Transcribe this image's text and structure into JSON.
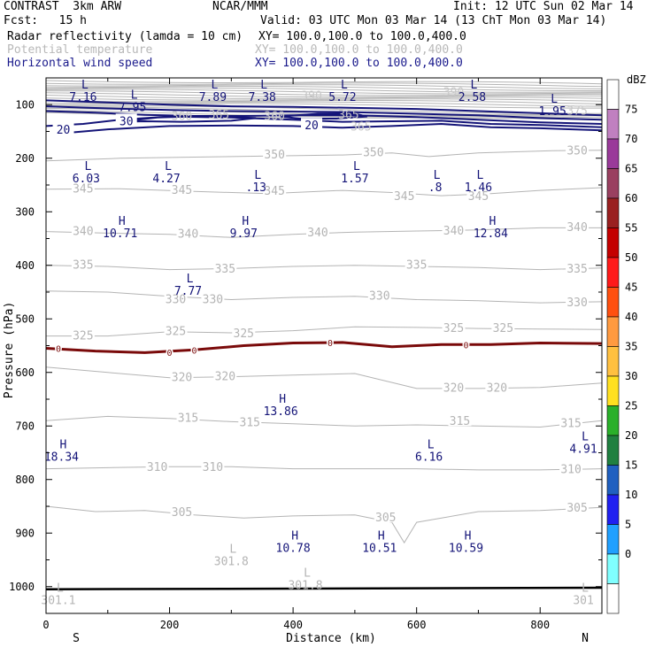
{
  "header": {
    "title": "CONTRAST  3km ARW",
    "center": "NCAR/MMM",
    "init": "Init: 12 UTC Sun 02 Mar 14",
    "fcst": "Fcst:   15 h",
    "valid": "Valid: 03 UTC Mon 03 Mar 14 (13 ChT Mon 03 Mar 14)",
    "field1_name": "Radar reflectivity (lamda = 10 cm)",
    "field1_xy": "XY= 100.0,100.0 to 100.0,400.0",
    "field2_name": "Potential temperature",
    "field2_xy": "XY= 100.0,100.0 to 100.0,400.0",
    "field3_name": "Horizontal wind speed",
    "field3_xy": "XY= 100.0,100.0 to 100.0,400.0"
  },
  "chart_data": {
    "type": "line",
    "title": "Cross section",
    "xlabel": "Distance (km)",
    "ylabel": "Pressure (hPa)",
    "xlim": [
      0,
      900
    ],
    "ylim": [
      1050,
      50
    ],
    "x_ticks": [
      0,
      200,
      400,
      600,
      800
    ],
    "y_ticks": [
      100,
      200,
      300,
      400,
      500,
      600,
      700,
      800,
      900,
      1000
    ],
    "end_labels": {
      "left": "S",
      "right": "N"
    },
    "colorbar": {
      "unit": "dBZ",
      "ticks": [
        75,
        70,
        65,
        60,
        55,
        50,
        45,
        40,
        35,
        30,
        25,
        20,
        15,
        10,
        5,
        0
      ],
      "colors": [
        "#ffffff",
        "#c080c0",
        "#9a3a9a",
        "#9a4060",
        "#9a2020",
        "#c40000",
        "#ff1a1a",
        "#ff5010",
        "#ff9a40",
        "#ffc040",
        "#ffe020",
        "#2ab02a",
        "#208040",
        "#2060c0",
        "#2020f0",
        "#20a0ff",
        "#80ffff",
        "#ffffff"
      ]
    },
    "theta_isentropes": [
      {
        "value": 350,
        "points": [
          [
            0,
            205
          ],
          [
            120,
            200
          ],
          [
            240,
            198
          ],
          [
            360,
            196
          ],
          [
            480,
            194
          ],
          [
            560,
            190
          ],
          [
            620,
            197
          ],
          [
            700,
            190
          ],
          [
            760,
            188
          ],
          [
            820,
            186
          ],
          [
            900,
            185
          ]
        ]
      },
      {
        "value": 345,
        "points": [
          [
            0,
            258
          ],
          [
            120,
            257
          ],
          [
            240,
            262
          ],
          [
            360,
            266
          ],
          [
            480,
            260
          ],
          [
            560,
            264
          ],
          [
            640,
            270
          ],
          [
            720,
            266
          ],
          [
            800,
            260
          ],
          [
            900,
            255
          ]
        ]
      },
      {
        "value": 340,
        "points": [
          [
            0,
            337
          ],
          [
            100,
            340
          ],
          [
            200,
            342
          ],
          [
            300,
            348
          ],
          [
            400,
            342
          ],
          [
            500,
            338
          ],
          [
            600,
            336
          ],
          [
            700,
            334
          ],
          [
            800,
            330
          ],
          [
            900,
            330
          ]
        ]
      },
      {
        "value": 335,
        "points": [
          [
            0,
            400
          ],
          [
            100,
            402
          ],
          [
            200,
            408
          ],
          [
            300,
            406
          ],
          [
            400,
            402
          ],
          [
            500,
            400
          ],
          [
            600,
            402
          ],
          [
            700,
            404
          ],
          [
            800,
            408
          ],
          [
            900,
            405
          ]
        ]
      },
      {
        "value": 330,
        "points": [
          [
            0,
            448
          ],
          [
            100,
            450
          ],
          [
            200,
            458
          ],
          [
            300,
            464
          ],
          [
            400,
            460
          ],
          [
            500,
            458
          ],
          [
            600,
            464
          ],
          [
            700,
            466
          ],
          [
            800,
            470
          ],
          [
            900,
            468
          ]
        ]
      },
      {
        "value": 325,
        "points": [
          [
            0,
            532
          ],
          [
            100,
            532
          ],
          [
            200,
            524
          ],
          [
            300,
            526
          ],
          [
            400,
            522
          ],
          [
            500,
            515
          ],
          [
            600,
            516
          ],
          [
            700,
            518
          ],
          [
            800,
            519
          ],
          [
            900,
            520
          ]
        ]
      },
      {
        "value": 320,
        "points": [
          [
            0,
            590
          ],
          [
            100,
            600
          ],
          [
            200,
            610
          ],
          [
            300,
            608
          ],
          [
            400,
            605
          ],
          [
            500,
            602
          ],
          [
            600,
            630
          ],
          [
            700,
            630
          ],
          [
            800,
            628
          ],
          [
            900,
            620
          ]
        ]
      },
      {
        "value": 315,
        "points": [
          [
            0,
            690
          ],
          [
            100,
            682
          ],
          [
            200,
            686
          ],
          [
            300,
            692
          ],
          [
            400,
            696
          ],
          [
            500,
            700
          ],
          [
            600,
            698
          ],
          [
            700,
            700
          ],
          [
            800,
            702
          ],
          [
            900,
            690
          ]
        ]
      },
      {
        "value": 310,
        "points": [
          [
            0,
            780
          ],
          [
            100,
            778
          ],
          [
            200,
            776
          ],
          [
            300,
            776
          ],
          [
            400,
            780
          ],
          [
            500,
            780
          ],
          [
            600,
            780
          ],
          [
            700,
            782
          ],
          [
            800,
            782
          ],
          [
            900,
            780
          ]
        ]
      },
      {
        "value": 305,
        "points": [
          [
            0,
            850
          ],
          [
            80,
            860
          ],
          [
            160,
            858
          ],
          [
            240,
            866
          ],
          [
            320,
            872
          ],
          [
            400,
            868
          ],
          [
            500,
            866
          ],
          [
            560,
            880
          ],
          [
            580,
            918
          ],
          [
            600,
            880
          ],
          [
            700,
            860
          ],
          [
            800,
            858
          ],
          [
            900,
            852
          ]
        ]
      }
    ],
    "theta_labels": [
      {
        "text": "350",
        "x": 370,
        "y": 192
      },
      {
        "text": "350",
        "x": 530,
        "y": 188
      },
      {
        "text": "350",
        "x": 860,
        "y": 185
      },
      {
        "text": "345",
        "x": 60,
        "y": 256
      },
      {
        "text": "345",
        "x": 220,
        "y": 258
      },
      {
        "text": "345",
        "x": 370,
        "y": 260
      },
      {
        "text": "345",
        "x": 580,
        "y": 270
      },
      {
        "text": "345",
        "x": 700,
        "y": 270
      },
      {
        "text": "340",
        "x": 60,
        "y": 335
      },
      {
        "text": "340",
        "x": 230,
        "y": 340
      },
      {
        "text": "340",
        "x": 440,
        "y": 338
      },
      {
        "text": "340",
        "x": 660,
        "y": 334
      },
      {
        "text": "340",
        "x": 860,
        "y": 328
      },
      {
        "text": "335",
        "x": 60,
        "y": 398
      },
      {
        "text": "335",
        "x": 290,
        "y": 405
      },
      {
        "text": "335",
        "x": 600,
        "y": 398
      },
      {
        "text": "335",
        "x": 860,
        "y": 405
      },
      {
        "text": "330",
        "x": 210,
        "y": 462
      },
      {
        "text": "330",
        "x": 270,
        "y": 462
      },
      {
        "text": "330",
        "x": 540,
        "y": 456
      },
      {
        "text": "330",
        "x": 860,
        "y": 468
      },
      {
        "text": "325",
        "x": 60,
        "y": 530
      },
      {
        "text": "325",
        "x": 210,
        "y": 522
      },
      {
        "text": "325",
        "x": 320,
        "y": 526
      },
      {
        "text": "325",
        "x": 660,
        "y": 516
      },
      {
        "text": "325",
        "x": 740,
        "y": 516
      },
      {
        "text": "320",
        "x": 220,
        "y": 608
      },
      {
        "text": "320",
        "x": 290,
        "y": 606
      },
      {
        "text": "320",
        "x": 660,
        "y": 628
      },
      {
        "text": "320",
        "x": 730,
        "y": 628
      },
      {
        "text": "315",
        "x": 230,
        "y": 684
      },
      {
        "text": "315",
        "x": 330,
        "y": 692
      },
      {
        "text": "315",
        "x": 670,
        "y": 690
      },
      {
        "text": "315",
        "x": 850,
        "y": 694
      },
      {
        "text": "310",
        "x": 180,
        "y": 776
      },
      {
        "text": "310",
        "x": 270,
        "y": 776
      },
      {
        "text": "310",
        "x": 850,
        "y": 780
      },
      {
        "text": "305",
        "x": 220,
        "y": 860
      },
      {
        "text": "305",
        "x": 550,
        "y": 870
      },
      {
        "text": "305",
        "x": 860,
        "y": 852
      }
    ],
    "upper_theta_labels": [
      {
        "text": "390",
        "x": 430,
        "y": 82
      },
      {
        "text": "390",
        "x": 660,
        "y": 76
      },
      {
        "text": "360",
        "x": 220,
        "y": 120
      },
      {
        "text": "365",
        "x": 280,
        "y": 118
      },
      {
        "text": "360",
        "x": 370,
        "y": 120
      },
      {
        "text": "365",
        "x": 490,
        "y": 118
      },
      {
        "text": "365",
        "x": 510,
        "y": 140
      },
      {
        "text": "375",
        "x": 860,
        "y": 110
      }
    ],
    "wind_contours": [
      {
        "value": 20,
        "label_positions": [
          [
            28,
            146
          ],
          [
            430,
            138
          ]
        ]
      },
      {
        "value": 30,
        "label_positions": [
          [
            130,
            130
          ]
        ]
      }
    ],
    "freezing_line": {
      "value": 0,
      "points": [
        [
          0,
          555
        ],
        [
          80,
          560
        ],
        [
          160,
          563
        ],
        [
          240,
          558
        ],
        [
          320,
          550
        ],
        [
          400,
          545
        ],
        [
          480,
          544
        ],
        [
          560,
          552
        ],
        [
          640,
          548
        ],
        [
          720,
          548
        ],
        [
          800,
          545
        ],
        [
          900,
          546
        ]
      ],
      "label_positions": [
        [
          20,
          555
        ],
        [
          200,
          562
        ],
        [
          240,
          558
        ],
        [
          460,
          544
        ],
        [
          680,
          548
        ]
      ]
    },
    "extrema": [
      {
        "type": "L",
        "value": "7.16",
        "x": 60,
        "y": 63
      },
      {
        "type": "L",
        "value": "7.95",
        "x": 140,
        "y": 82
      },
      {
        "type": "L",
        "value": "7.89",
        "x": 270,
        "y": 63
      },
      {
        "type": "L",
        "value": "7.38",
        "x": 350,
        "y": 63
      },
      {
        "type": "L",
        "value": "5.72",
        "x": 480,
        "y": 63
      },
      {
        "type": "L",
        "value": "2.58",
        "x": 690,
        "y": 63
      },
      {
        "type": "L",
        "value": "1.95",
        "x": 820,
        "y": 90
      },
      {
        "type": "L",
        "value": "6.03",
        "x": 65,
        "y": 215
      },
      {
        "type": "L",
        "value": "4.27",
        "x": 195,
        "y": 215
      },
      {
        "type": "L",
        "value": ".13",
        "x": 340,
        "y": 232
      },
      {
        "type": "L",
        "value": "1.57",
        "x": 500,
        "y": 215
      },
      {
        "type": "L",
        "value": ".8",
        "x": 630,
        "y": 232
      },
      {
        "type": "L",
        "value": "1.46",
        "x": 700,
        "y": 232
      },
      {
        "type": "H",
        "value": "10.71",
        "x": 120,
        "y": 318
      },
      {
        "type": "H",
        "value": "9.97",
        "x": 320,
        "y": 318
      },
      {
        "type": "H",
        "value": "12.84",
        "x": 720,
        "y": 318
      },
      {
        "type": "L",
        "value": "7.77",
        "x": 230,
        "y": 425
      },
      {
        "type": "H",
        "value": "13.86",
        "x": 380,
        "y": 650
      },
      {
        "type": "L",
        "value": "4.91",
        "x": 870,
        "y": 720
      },
      {
        "type": "H",
        "value": "18.34",
        "x": 25,
        "y": 735
      },
      {
        "type": "L",
        "value": "6.16",
        "x": 620,
        "y": 735
      },
      {
        "type": "H",
        "value": "10.78",
        "x": 400,
        "y": 905
      },
      {
        "type": "H",
        "value": "10.51",
        "x": 540,
        "y": 905
      },
      {
        "type": "H",
        "value": "10.59",
        "x": 680,
        "y": 905
      },
      {
        "type": "L",
        "value": "301.8",
        "x": 300,
        "y": 930,
        "gray": true
      },
      {
        "type": "L",
        "value": "301.8",
        "x": 420,
        "y": 975,
        "gray": true
      },
      {
        "type": "L",
        "value": "301.1",
        "x": 20,
        "y": 1003,
        "gray": true
      },
      {
        "type": "L",
        "value": "301",
        "x": 870,
        "y": 1003,
        "gray": true
      }
    ]
  }
}
